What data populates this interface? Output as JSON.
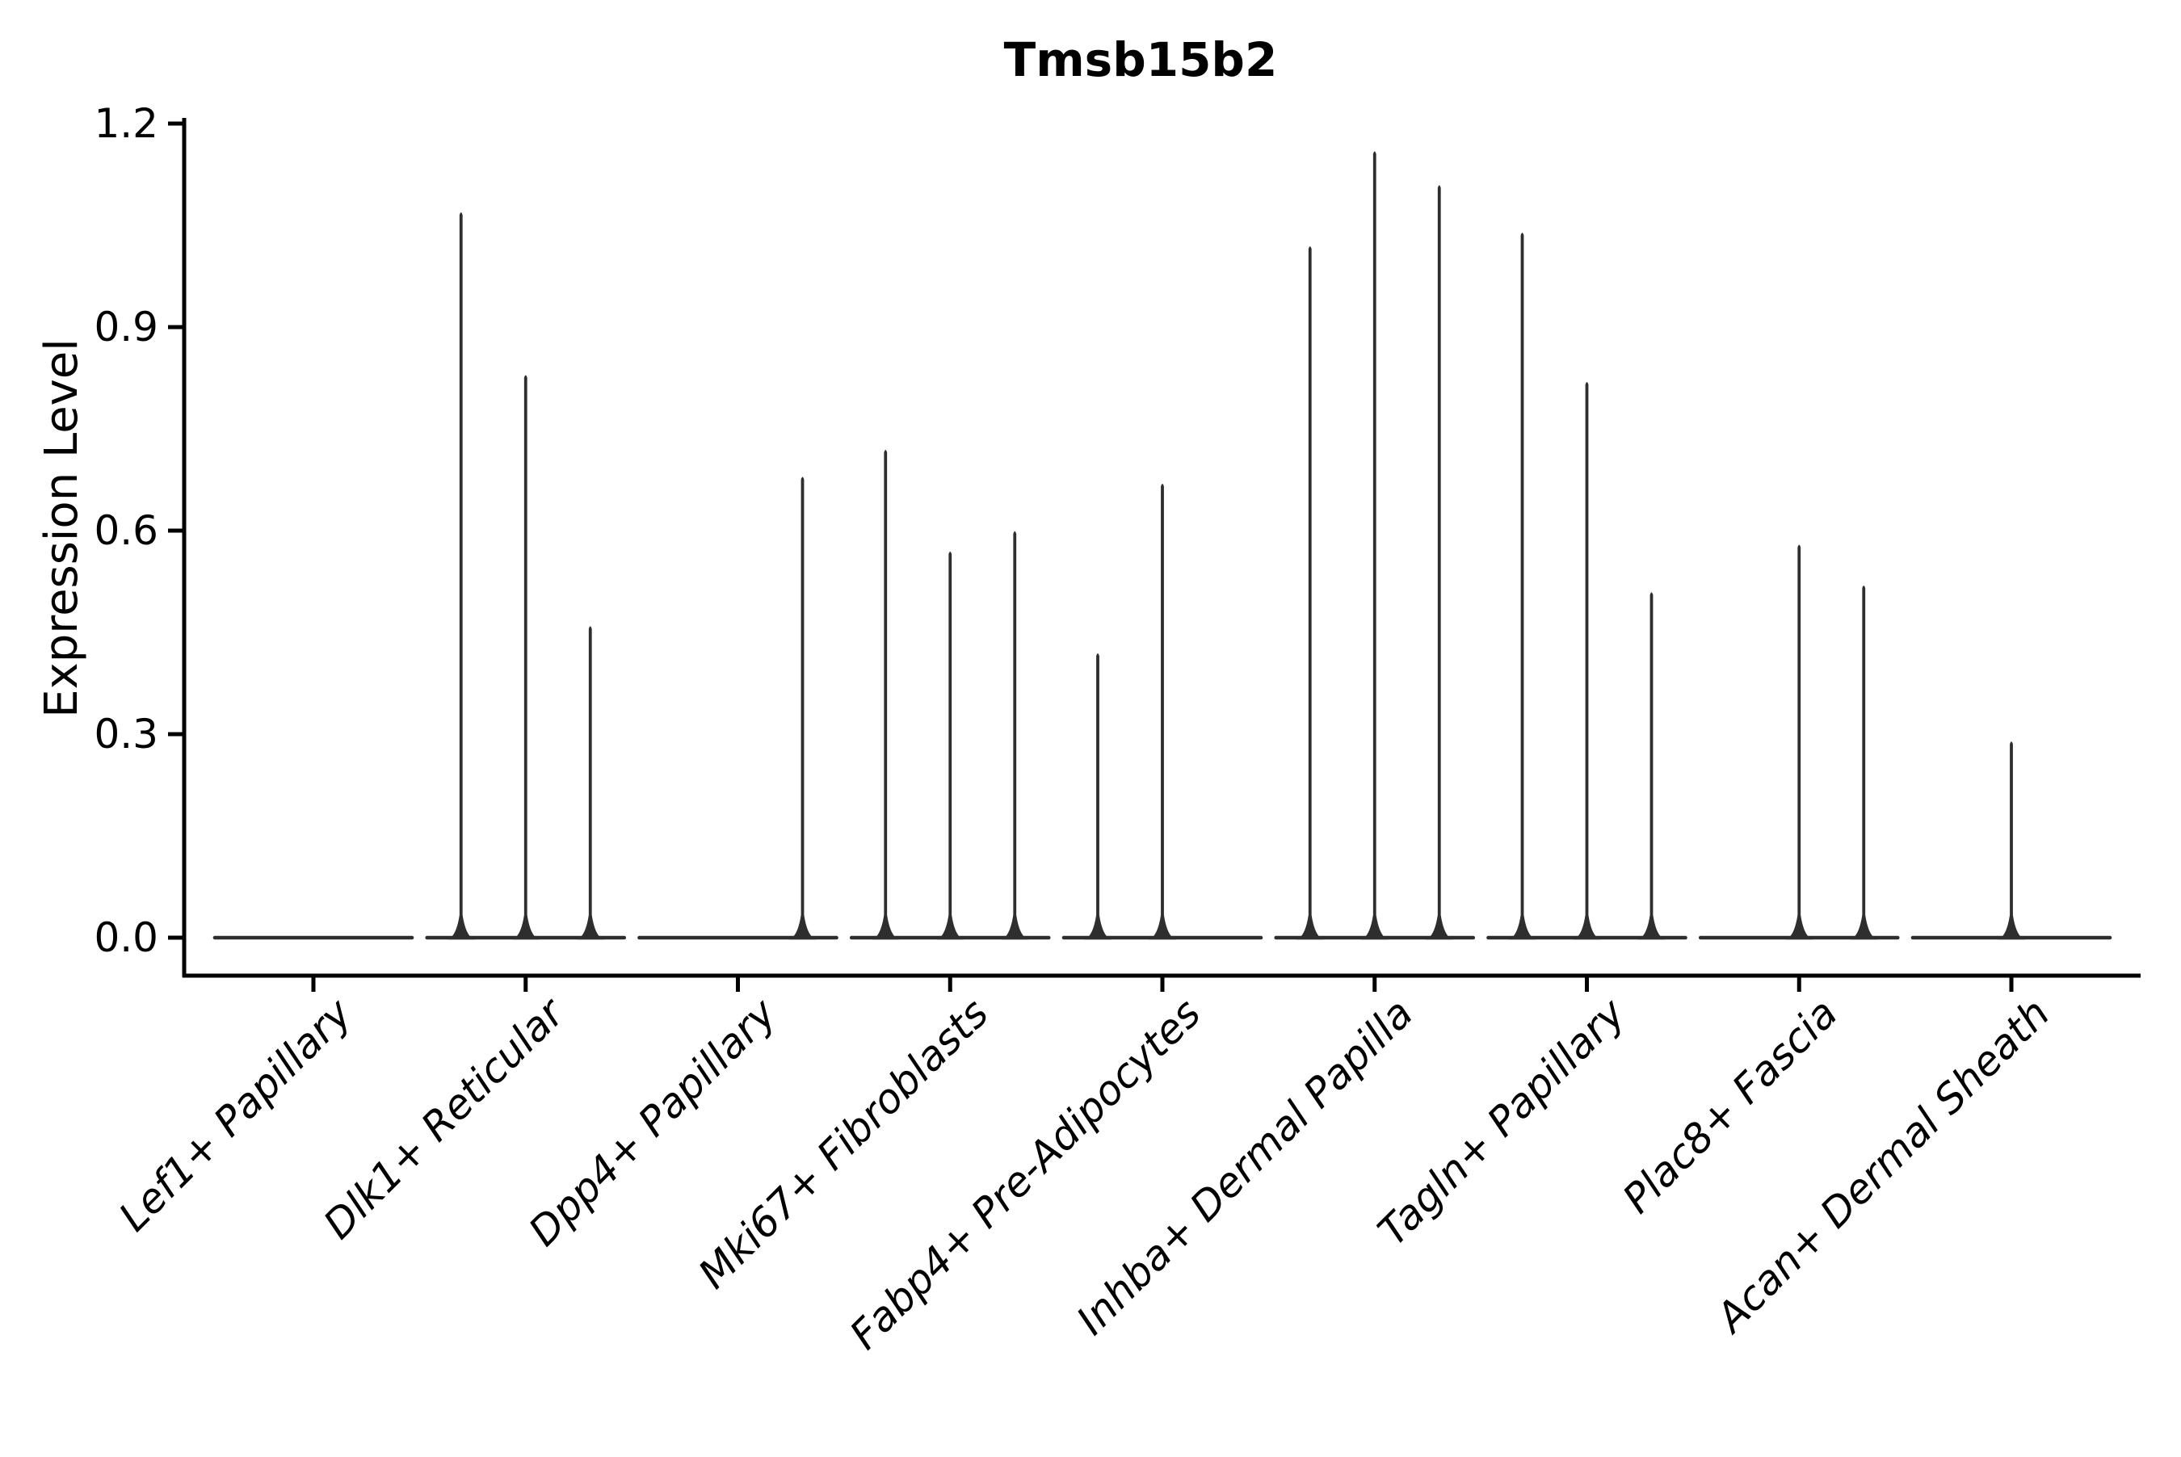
{
  "figure": {
    "background": "#ffffff",
    "axis_color": "#000000",
    "text_color": "#000000",
    "violin_color": "#2e2e2e"
  },
  "chart_data": {
    "type": "violin",
    "title": "Tmsb15b2",
    "xlabel": "",
    "ylabel": "Expression Level",
    "ylim": [
      -0.06,
      1.21
    ],
    "yticks": [
      0.0,
      0.3,
      0.6,
      0.9,
      1.2
    ],
    "ytick_labels": [
      "0.0",
      "0.3",
      "0.6",
      "0.9",
      "1.2"
    ],
    "grid": false,
    "legend_position": "none",
    "violins_per_category": 3,
    "note": "Each category holds 3 needle-thin violins; value is the max expression (spike top). 0 means a flat violin collapsed on the baseline.",
    "categories": [
      "Lef1+ Papillary",
      "Dlk1+ Reticular",
      "Dpp4+ Papillary",
      "Mki67+ Fibroblasts",
      "Fabp4+ Pre-Adipocytes",
      "Inhba+ Dermal Papilla",
      "Tagln+ Papillary",
      "Plac8+ Fascia",
      "Acan+ Dermal Sheath"
    ],
    "groups": [
      {
        "label": "Lef1+ Papillary",
        "violin_max_expression": [
          0,
          0,
          0
        ]
      },
      {
        "label": "Dlk1+ Reticular",
        "violin_max_expression": [
          1.07,
          0.83,
          0.46
        ]
      },
      {
        "label": "Dpp4+ Papillary",
        "violin_max_expression": [
          0,
          0,
          0.68
        ]
      },
      {
        "label": "Mki67+ Fibroblasts",
        "violin_max_expression": [
          0.72,
          0.57,
          0.6
        ]
      },
      {
        "label": "Fabp4+ Pre-Adipocytes",
        "violin_max_expression": [
          0.42,
          0.67,
          0
        ]
      },
      {
        "label": "Inhba+ Dermal Papilla",
        "violin_max_expression": [
          1.02,
          1.16,
          1.11
        ]
      },
      {
        "label": "Tagln+ Papillary",
        "violin_max_expression": [
          1.04,
          0.82,
          0.51
        ]
      },
      {
        "label": "Plac8+ Fascia",
        "violin_max_expression": [
          0,
          0.58,
          0.52
        ]
      },
      {
        "label": "Acan+ Dermal Sheath",
        "violin_max_expression": [
          0,
          0.29,
          0
        ]
      }
    ]
  }
}
